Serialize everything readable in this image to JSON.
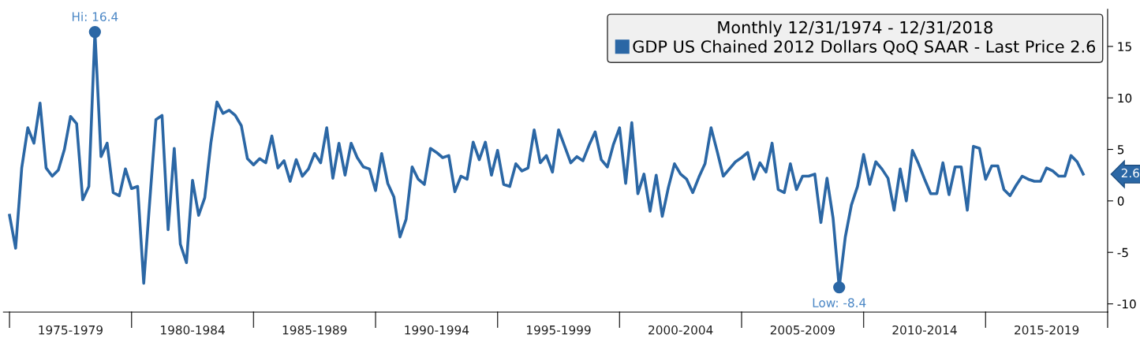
{
  "chart_data": {
    "type": "line",
    "legend_title": "Monthly 12/31/1974 - 12/31/2018",
    "series": [
      {
        "name": "GDP US Chained 2012 Dollars QoQ SAAR - Last Price 2.6",
        "color": "#2b67a5",
        "values": [
          -1.4,
          -4.6,
          3.2,
          7.1,
          5.6,
          9.5,
          3.2,
          2.4,
          3.0,
          5.0,
          8.2,
          7.5,
          0.1,
          1.4,
          16.4,
          4.3,
          5.6,
          0.8,
          0.5,
          3.1,
          1.2,
          1.4,
          -8.0,
          0.1,
          7.9,
          8.3,
          -2.8,
          5.1,
          -4.2,
          -6.0,
          2.0,
          -1.4,
          0.3,
          5.6,
          9.6,
          8.5,
          8.8,
          8.3,
          7.3,
          4.1,
          3.5,
          4.1,
          3.7,
          6.3,
          3.2,
          3.9,
          1.9,
          4.0,
          2.4,
          3.1,
          4.6,
          3.7,
          7.1,
          2.2,
          5.6,
          2.5,
          5.6,
          4.2,
          3.3,
          3.1,
          1.0,
          4.6,
          1.7,
          0.4,
          -3.5,
          -1.8,
          3.3,
          2.1,
          1.6,
          5.1,
          4.7,
          4.2,
          4.4,
          0.9,
          2.4,
          2.1,
          5.7,
          4.0,
          5.7,
          2.5,
          4.9,
          1.6,
          1.4,
          3.6,
          2.9,
          3.2,
          6.9,
          3.7,
          4.4,
          2.8,
          6.9,
          5.3,
          3.7,
          4.3,
          3.9,
          5.4,
          6.7,
          4.0,
          3.3,
          5.5,
          7.1,
          1.7,
          7.6,
          0.7,
          2.6,
          -1.0,
          2.5,
          -1.5,
          1.3,
          3.6,
          2.6,
          2.1,
          0.8,
          2.3,
          3.6,
          7.1,
          4.8,
          2.4,
          3.1,
          3.8,
          4.2,
          4.7,
          2.1,
          3.7,
          2.8,
          5.6,
          1.1,
          0.8,
          3.6,
          1.1,
          2.4,
          2.4,
          2.6,
          -2.1,
          2.2,
          -1.7,
          -8.4,
          -3.5,
          -0.4,
          1.4,
          4.5,
          1.6,
          3.8,
          3.1,
          2.2,
          -0.9,
          3.1,
          0.0,
          4.9,
          3.6,
          2.1,
          0.7,
          0.7,
          3.7,
          0.6,
          3.3,
          3.3,
          -0.9,
          5.3,
          5.1,
          2.1,
          3.4,
          3.4,
          1.1,
          0.5,
          1.5,
          2.4,
          2.1,
          1.9,
          1.9,
          3.2,
          2.9,
          2.4,
          2.4,
          4.4,
          3.8,
          2.6
        ]
      }
    ],
    "categories": [
      null,
      null,
      null,
      null,
      null,
      null,
      null,
      null,
      null,
      null,
      "1975-1979",
      null,
      null,
      null,
      null,
      null,
      null,
      null,
      null,
      null,
      null,
      null,
      null,
      null,
      null,
      null,
      null,
      null,
      null,
      null,
      "1980-1984",
      null,
      null,
      null,
      null,
      null,
      null,
      null,
      null,
      null,
      null,
      null,
      null,
      null,
      null,
      null,
      null,
      null,
      null,
      null,
      "1985-1989",
      null,
      null,
      null,
      null,
      null,
      null,
      null,
      null,
      null,
      null,
      null,
      null,
      null,
      null,
      null,
      null,
      null,
      null,
      null,
      "1990-1994",
      null,
      null,
      null,
      null,
      null,
      null,
      null,
      null,
      null,
      null,
      null,
      null,
      null,
      null,
      null,
      null,
      null,
      null,
      null,
      "1995-1999",
      null,
      null,
      null,
      null,
      null,
      null,
      null,
      null,
      null,
      null,
      null,
      null,
      null,
      null,
      null,
      null,
      null,
      null,
      null,
      "2000-2004",
      null,
      null,
      null,
      null,
      null,
      null,
      null,
      null,
      null,
      null,
      null,
      null,
      null,
      null,
      null,
      null,
      null,
      null,
      null,
      "2005-2009",
      null,
      null,
      null,
      null,
      null,
      null,
      null,
      null,
      null,
      null,
      null,
      null,
      null,
      null,
      null,
      null,
      null,
      null,
      null,
      "2010-2014",
      null,
      null,
      null,
      null,
      null,
      null,
      null,
      null,
      null,
      null,
      null,
      null,
      null,
      null,
      null,
      null,
      null,
      null,
      null,
      "2015-2019",
      null,
      null,
      null,
      null,
      null,
      null
    ],
    "ylim": [
      -10.8,
      18.6
    ],
    "yticks": [
      -10,
      -5,
      0,
      5,
      10,
      15
    ],
    "annotations": [
      {
        "text": "Hi: 16.4",
        "y": 16.4
      },
      {
        "text": "Low: -8.4",
        "y": -8.4
      },
      "2.6"
    ],
    "grid": false,
    "legend": "top right",
    "marker": "none",
    "line_style": "solid"
  }
}
